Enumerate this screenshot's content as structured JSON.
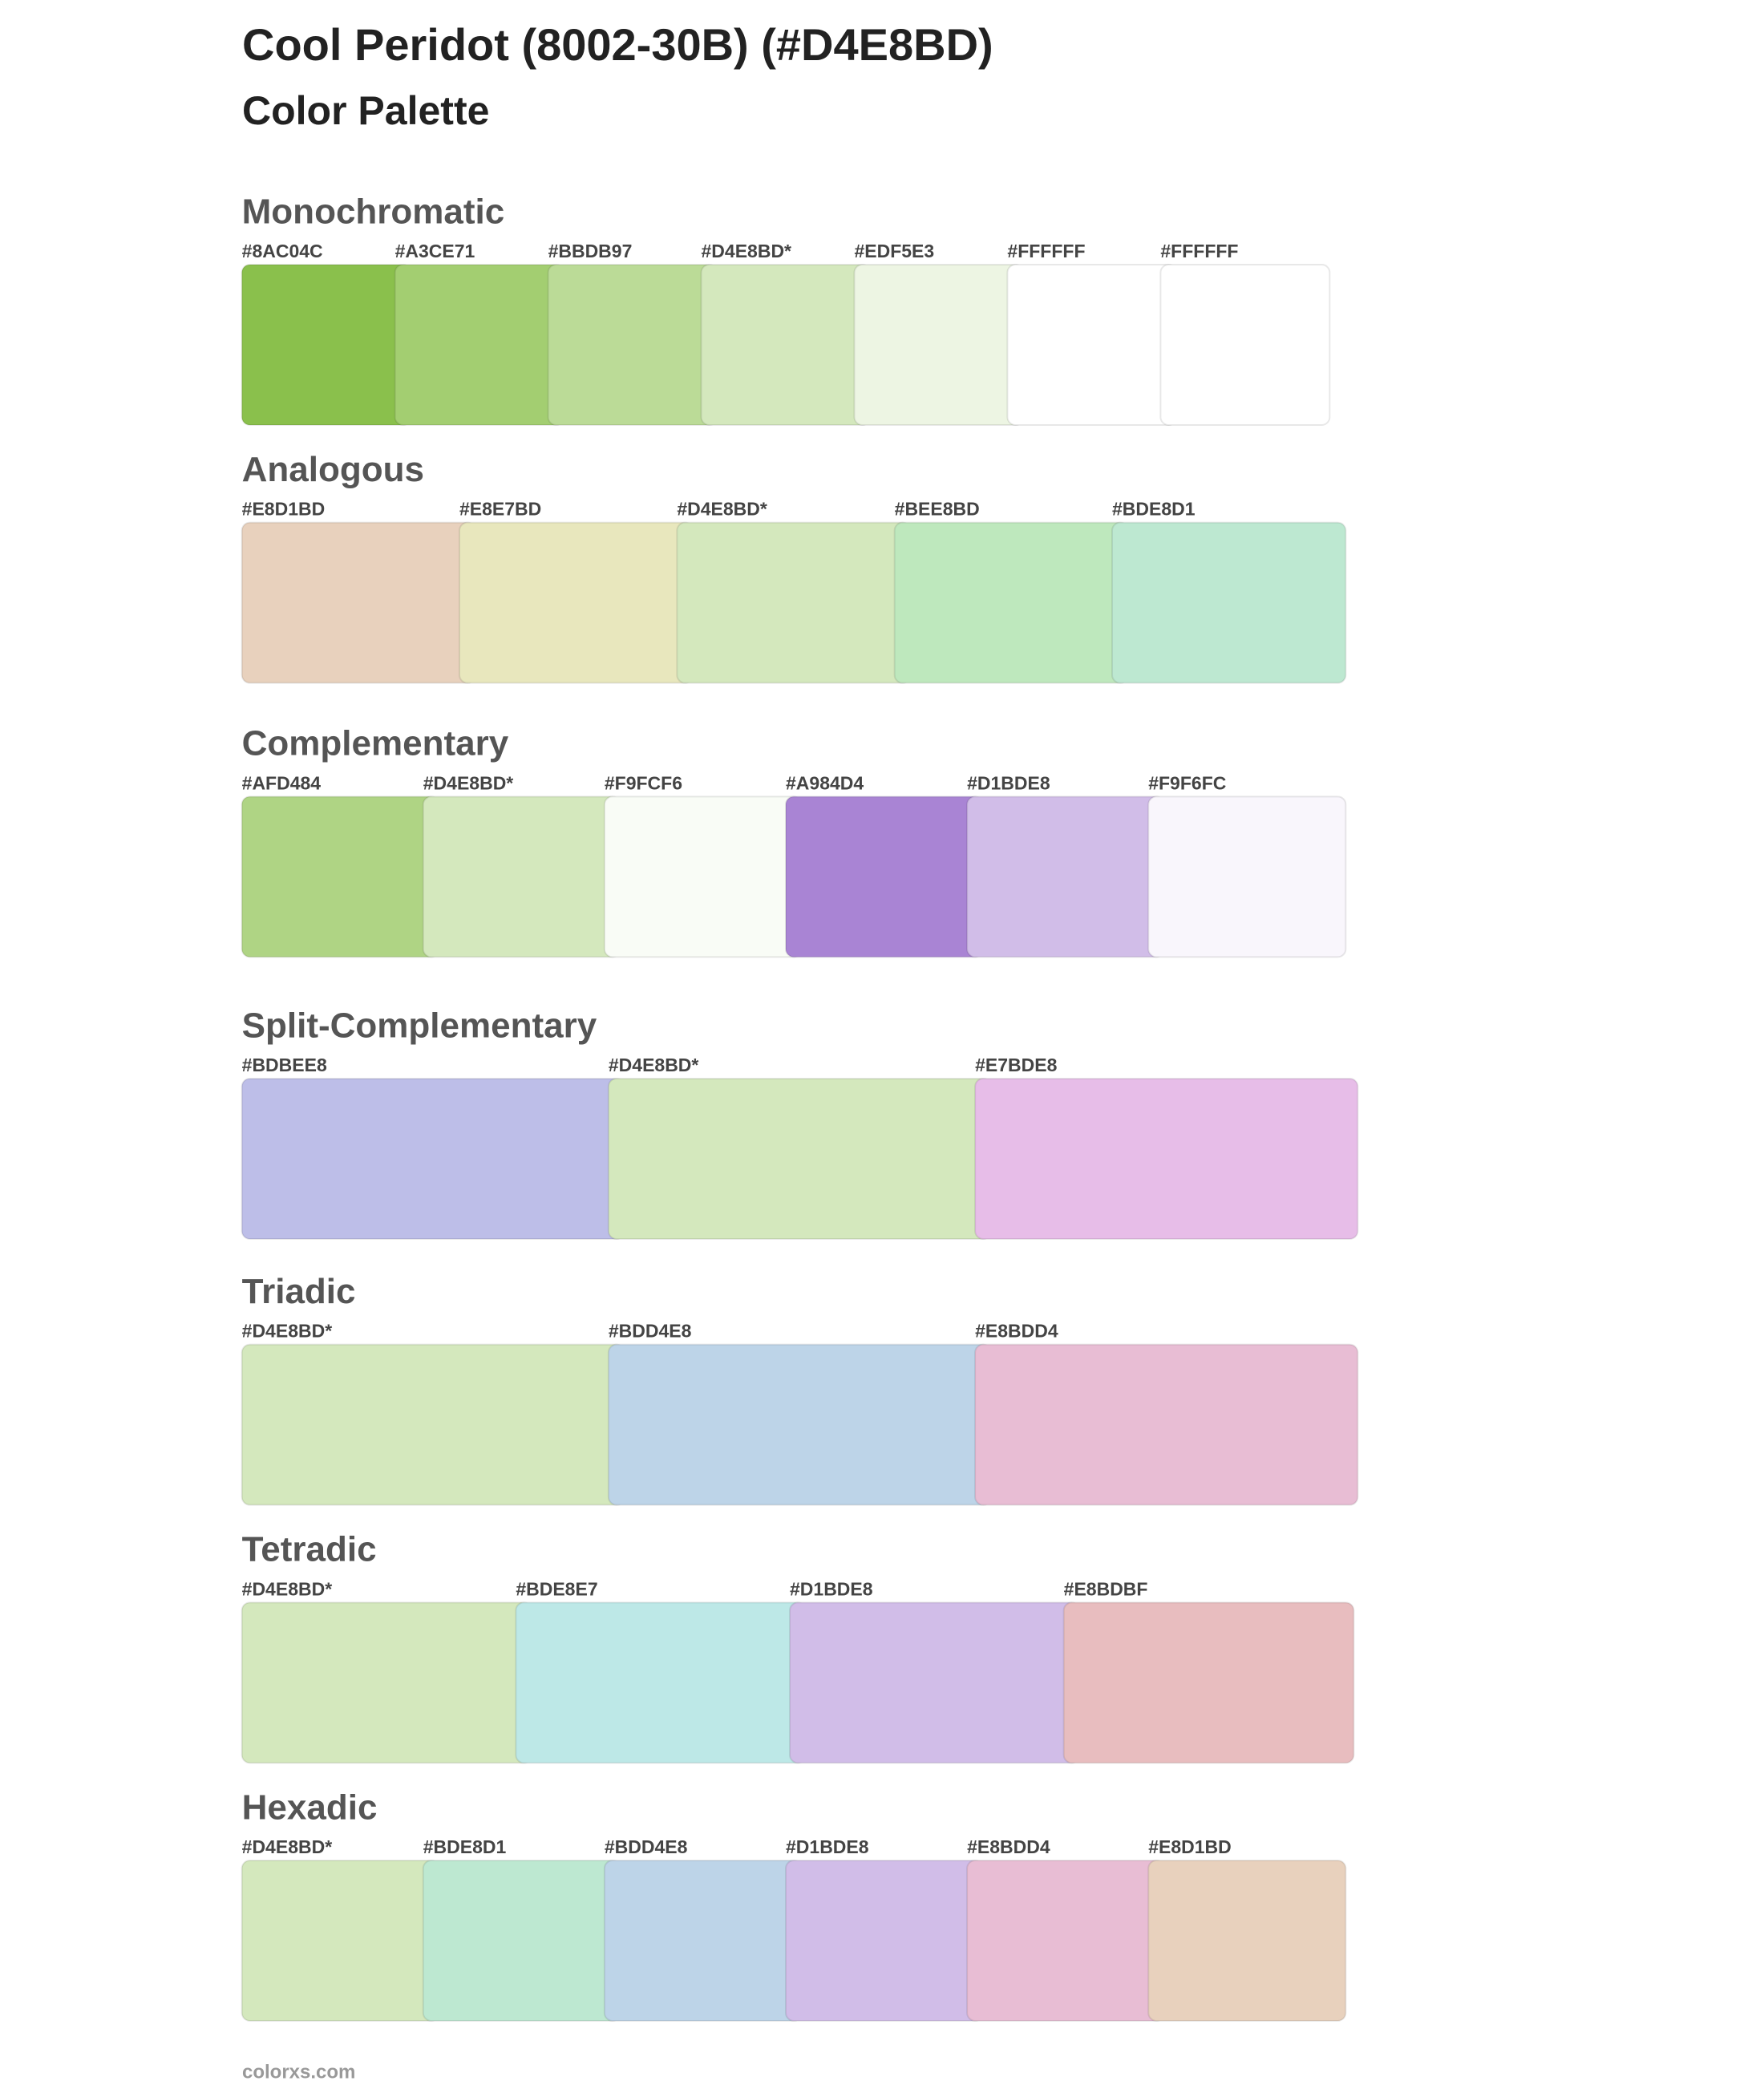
{
  "header": {
    "title": "Cool Peridot (8002-30B) (#D4E8BD)",
    "subtitle": "Color Palette"
  },
  "palettes": [
    {
      "name": "Monochromatic",
      "swatches": [
        {
          "label": "#8AC04C",
          "color": "#8AC04C"
        },
        {
          "label": "#A3CE71",
          "color": "#A3CE71"
        },
        {
          "label": "#BBDB97",
          "color": "#BBDB97"
        },
        {
          "label": "#D4E8BD*",
          "color": "#D4E8BD"
        },
        {
          "label": "#EDF5E3",
          "color": "#EDF5E3"
        },
        {
          "label": "#FFFFFF",
          "color": "#FFFFFF"
        },
        {
          "label": "#FFFFFF",
          "color": "#FFFFFF"
        }
      ]
    },
    {
      "name": "Analogous",
      "swatches": [
        {
          "label": "#E8D1BD",
          "color": "#E8D1BD"
        },
        {
          "label": "#E8E7BD",
          "color": "#E8E7BD"
        },
        {
          "label": "#D4E8BD*",
          "color": "#D4E8BD"
        },
        {
          "label": "#BEE8BD",
          "color": "#BEE8BD"
        },
        {
          "label": "#BDE8D1",
          "color": "#BDE8D1"
        }
      ]
    },
    {
      "name": "Complementary",
      "swatches": [
        {
          "label": "#AFD484",
          "color": "#AFD484"
        },
        {
          "label": "#D4E8BD*",
          "color": "#D4E8BD"
        },
        {
          "label": "#F9FCF6",
          "color": "#F9FCF6"
        },
        {
          "label": "#A984D4",
          "color": "#A984D4"
        },
        {
          "label": "#D1BDE8",
          "color": "#D1BDE8"
        },
        {
          "label": "#F9F6FC",
          "color": "#F9F6FC"
        }
      ]
    },
    {
      "name": "Split-Complementary",
      "swatches": [
        {
          "label": "#BDBEE8",
          "color": "#BDBEE8"
        },
        {
          "label": "#D4E8BD*",
          "color": "#D4E8BD"
        },
        {
          "label": "#E7BDE8",
          "color": "#E7BDE8"
        }
      ]
    },
    {
      "name": "Triadic",
      "swatches": [
        {
          "label": "#D4E8BD*",
          "color": "#D4E8BD"
        },
        {
          "label": "#BDD4E8",
          "color": "#BDD4E8"
        },
        {
          "label": "#E8BDD4",
          "color": "#E8BDD4"
        }
      ]
    },
    {
      "name": "Tetradic",
      "swatches": [
        {
          "label": "#D4E8BD*",
          "color": "#D4E8BD"
        },
        {
          "label": "#BDE8E7",
          "color": "#BDE8E7"
        },
        {
          "label": "#D1BDE8",
          "color": "#D1BDE8"
        },
        {
          "label": "#E8BDBF",
          "color": "#E8BDBF"
        }
      ]
    },
    {
      "name": "Hexadic",
      "swatches": [
        {
          "label": "#D4E8BD*",
          "color": "#D4E8BD"
        },
        {
          "label": "#BDE8D1",
          "color": "#BDE8D1"
        },
        {
          "label": "#BDD4E8",
          "color": "#BDD4E8"
        },
        {
          "label": "#D1BDE8",
          "color": "#D1BDE8"
        },
        {
          "label": "#E8BDD4",
          "color": "#E8BDD4"
        },
        {
          "label": "#E8D1BD",
          "color": "#E8D1BD"
        }
      ]
    }
  ],
  "footer": "colorxs.com"
}
